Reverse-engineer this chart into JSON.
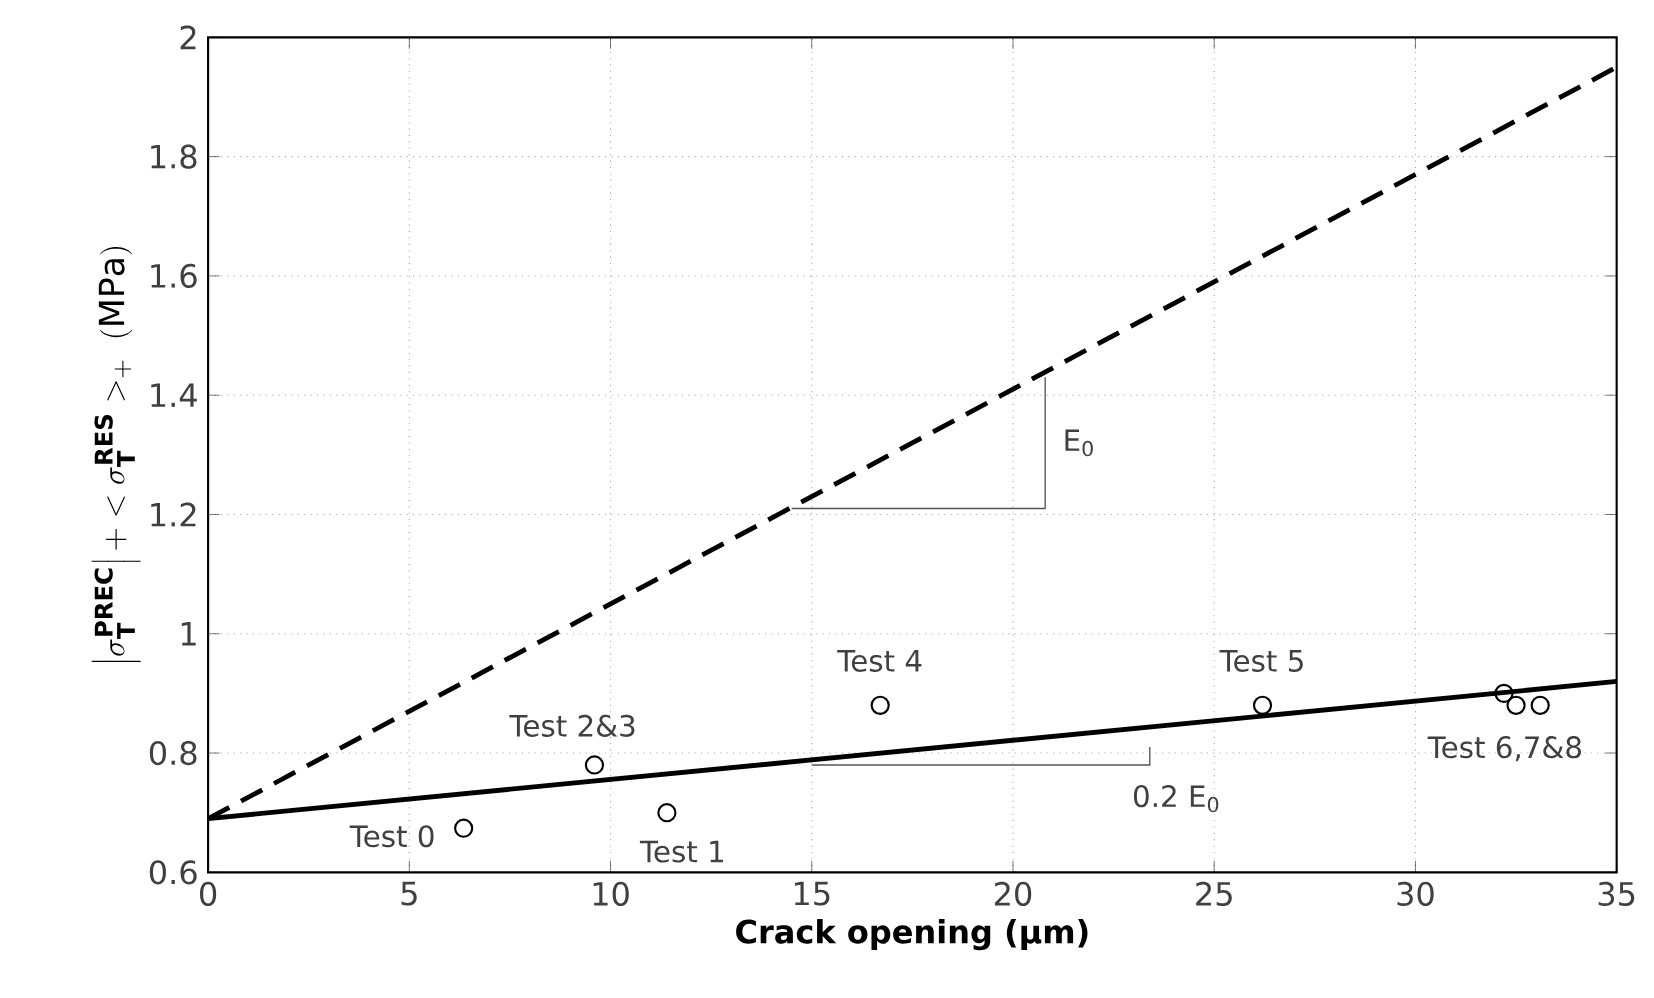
{
  "chart_data": {
    "type": "scatter",
    "xlabel": "Crack opening (μm)",
    "ylabel": "\\left|\\sigma_{\\mathbf{T}}^{\\mathbf{PREC}}\\right| + < \\sigma_{\\mathbf{T}}^{\\mathbf{RES}} >_{+} \\;(\\mathrm{MPa})",
    "xlim": [
      0,
      35
    ],
    "ylim": [
      0.6,
      2
    ],
    "xticks": [
      0,
      5,
      10,
      15,
      20,
      25,
      30,
      35
    ],
    "yticks": [
      0.6,
      0.8,
      1,
      1.2,
      1.4,
      1.6,
      1.8,
      2
    ],
    "grid": true,
    "series": [
      {
        "type": "line",
        "color": "#000000",
        "line_style": "dashed",
        "marker": "none",
        "x": [
          0,
          35
        ],
        "values": [
          0.69,
          1.95
        ]
      },
      {
        "type": "line",
        "color": "#000000",
        "line_style": "solid",
        "marker": "none",
        "x": [
          0,
          35
        ],
        "values": [
          0.69,
          0.92
        ]
      },
      {
        "type": "line",
        "color": "#555555",
        "line_style": "solid",
        "marker": "none",
        "x": [
          14.5,
          20.8,
          20.8
        ],
        "values": [
          1.21,
          1.21,
          1.43
        ]
      },
      {
        "type": "line",
        "color": "#555555",
        "line_style": "solid",
        "marker": "none",
        "x": [
          15,
          23.4,
          23.4
        ],
        "values": [
          0.78,
          0.78,
          0.81
        ]
      },
      {
        "color": "#000000",
        "marker": "circle",
        "x": [
          6.35,
          9.6,
          11.4,
          16.7,
          26.2,
          32.2,
          32.5,
          33.1
        ],
        "values": [
          0.674,
          0.78,
          0.7,
          0.88,
          0.88,
          0.9,
          0.88,
          0.88
        ]
      }
    ],
    "annotations": [
      {
        "text": "Test 0",
        "x": 6.35,
        "y": 0.674
      },
      {
        "text": "Test 2&3",
        "x": 9.6,
        "y": 0.78
      },
      {
        "text": "Test 1",
        "x": 11.4,
        "y": 0.7
      },
      {
        "text": "Test 4",
        "x": 16.7,
        "y": 0.88
      },
      {
        "text": "Test 5",
        "x": 26.2,
        "y": 0.88
      },
      {
        "text": "Test 6,7&8",
        "x": 32.5,
        "y": 0.88
      },
      {
        "text": "E$_{0}$",
        "x": 20.8,
        "y": 1.32
      },
      {
        "text": "0.2 E$_{0}$",
        "x": 23.4,
        "y": 0.78
      }
    ]
  }
}
